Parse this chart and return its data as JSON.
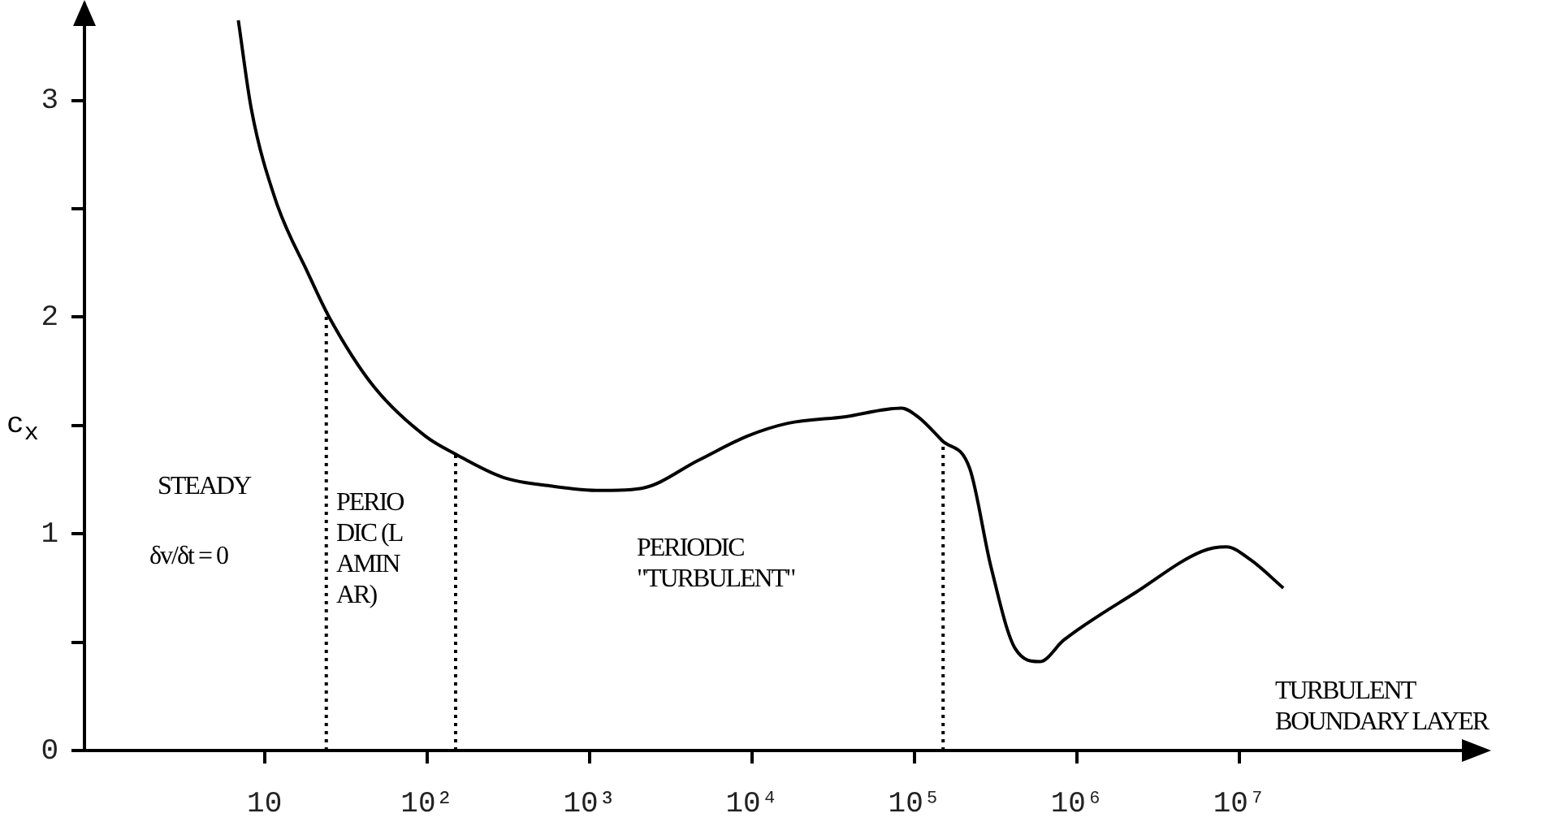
{
  "chart_data": {
    "type": "line",
    "ylabel": "c$_{x}$",
    "log": "x",
    "grid": false,
    "legend": false,
    "marker": "none",
    "line_style": "solid",
    "color": "#000000",
    "x": [
      6.9,
      8.3,
      11.7,
      18.6,
      25,
      47,
      98,
      148,
      295,
      590,
      1170,
      2090,
      4700,
      9300,
      16600,
      37000,
      83000,
      105000,
      148000,
      219000,
      295000,
      417000,
      590000,
      830000,
      2300000,
      5900000,
      8300000,
      11700000,
      18600000
    ],
    "values": [
      3.37,
      2.96,
      2.54,
      2.2,
      2.0,
      1.68,
      1.45,
      1.37,
      1.26,
      1.22,
      1.2,
      1.21,
      1.34,
      1.45,
      1.51,
      1.54,
      1.58,
      1.54,
      1.43,
      1.3,
      0.85,
      0.47,
      0.41,
      0.51,
      0.73,
      0.92,
      0.94,
      0.88,
      0.75
    ],
    "xlim": [
      0.78,
      330000000
    ],
    "xticks": [
      {
        "value": 10,
        "label": "10"
      },
      {
        "value": 100,
        "label": "10²"
      },
      {
        "value": 1000,
        "label": "10³"
      },
      {
        "value": 10000,
        "label": "10⁴"
      },
      {
        "value": 100000,
        "label": "10⁵"
      },
      {
        "value": 1000000,
        "label": "10⁶"
      },
      {
        "value": 10000000,
        "label": "10⁷"
      }
    ],
    "ylim": [
      0,
      3.45
    ],
    "yticks": [
      0,
      {
        "value": 0.5,
        "label": null
      },
      1,
      {
        "value": 1.5,
        "label": null
      },
      2,
      {
        "value": 2.5,
        "label": null
      },
      3
    ],
    "ref_lines": [
      {
        "axis": "x",
        "value": 24,
        "line_style": "dotted",
        "color": "#000000"
      },
      {
        "axis": "x",
        "value": 150,
        "line_style": "dotted",
        "color": "#000000"
      },
      {
        "axis": "x",
        "value": 150000,
        "line_style": "dotted",
        "color": "#000000"
      }
    ],
    "annotations": [
      "STEADY",
      "δv/δt = 0",
      "PERIODIC (LAMINAR)",
      "PERIODIC \"TURBULENT\"",
      "TURBULENT BOUNDARY LAYER"
    ]
  }
}
